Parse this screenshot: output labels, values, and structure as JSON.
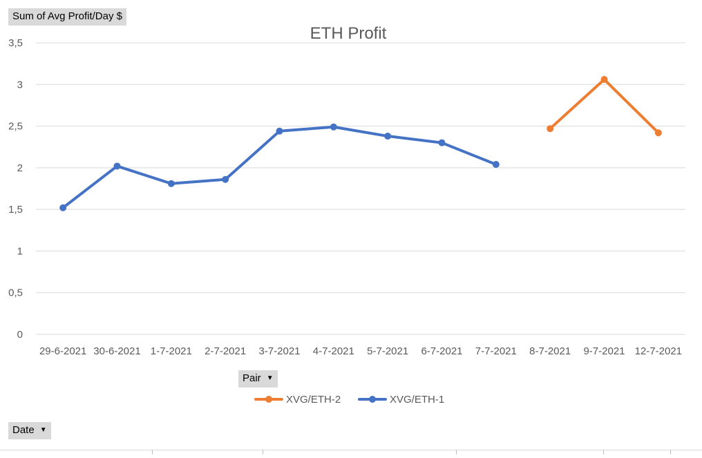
{
  "field_buttons": {
    "value_label": "Sum of Avg Profit/Day $",
    "legend_field_label": "Pair",
    "axis_field_label": "Date"
  },
  "chart_data": {
    "type": "line",
    "title": "ETH Profit",
    "xlabel": "",
    "ylabel": "",
    "categories": [
      "29-6-2021",
      "30-6-2021",
      "1-7-2021",
      "2-7-2021",
      "3-7-2021",
      "4-7-2021",
      "5-7-2021",
      "6-7-2021",
      "7-7-2021",
      "8-7-2021",
      "9-7-2021",
      "12-7-2021"
    ],
    "ylim": [
      0,
      3.5
    ],
    "yticks": [
      0,
      0.5,
      1,
      1.5,
      2,
      2.5,
      3,
      3.5
    ],
    "ytick_labels": [
      "0",
      "0,5",
      "1",
      "1,5",
      "2",
      "2,5",
      "3",
      "3,5"
    ],
    "grid": true,
    "legend_position": "bottom",
    "series": [
      {
        "name": "XVG/ETH-2",
        "color": "#ed7d31",
        "values": [
          null,
          null,
          null,
          null,
          null,
          null,
          null,
          null,
          null,
          2.47,
          3.06,
          2.42
        ]
      },
      {
        "name": "XVG/ETH-1",
        "color": "#4472c4",
        "values": [
          1.52,
          2.02,
          1.81,
          1.86,
          2.44,
          2.49,
          2.38,
          2.3,
          2.04,
          null,
          null,
          null
        ]
      }
    ]
  }
}
